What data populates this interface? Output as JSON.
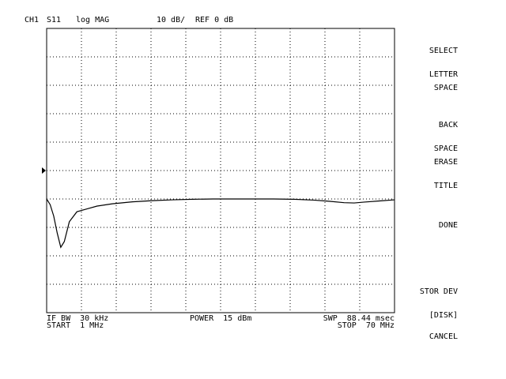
{
  "header": {
    "channel": "CH1",
    "parameter": "S11",
    "format": "log MAG",
    "scale": "10 dB/",
    "reference": "REF 0 dB"
  },
  "footer": {
    "if_bw": "IF BW  30 kHz",
    "start": "START  1 MHz",
    "power": "POWER  15 dBm",
    "sweep": "SWP  88.44 msec",
    "stop": "STOP  70 MHz"
  },
  "softkeys": [
    {
      "line1": "SELECT",
      "line2": "LETTER"
    },
    {
      "line1": "SPACE",
      "line2": ""
    },
    {
      "line1": "BACK",
      "line2": "SPACE"
    },
    {
      "line1": "ERASE",
      "line2": "TITLE"
    },
    {
      "line1": "DONE",
      "line2": ""
    },
    {
      "line1": "STOR DEV",
      "line2": "[DISK]"
    },
    {
      "line1": "CANCEL",
      "line2": ""
    }
  ],
  "chart_data": {
    "type": "line",
    "xlabel": "",
    "ylabel": "",
    "x_range_mhz": [
      1,
      70
    ],
    "y_divisions": 10,
    "x_divisions": 10,
    "grid": "dotted",
    "reference_marker_division": 5,
    "series": [
      {
        "x": [
          1,
          1.7,
          2.4,
          3.1,
          3.8,
          4.5,
          5.5,
          7,
          9,
          11,
          14,
          18,
          22,
          26,
          30,
          34,
          38,
          42,
          46,
          50,
          54,
          57,
          60,
          62,
          64,
          67,
          70
        ],
        "y": [
          -10,
          -12,
          -16,
          -22,
          -27,
          -25,
          -18,
          -14.5,
          -13.5,
          -12.5,
          -11.7,
          -11.0,
          -10.6,
          -10.3,
          -10.1,
          -10.0,
          -10.0,
          -10.0,
          -10.0,
          -10.1,
          -10.4,
          -10.8,
          -11.3,
          -11.4,
          -11.1,
          -10.7,
          -10.3
        ]
      }
    ]
  }
}
